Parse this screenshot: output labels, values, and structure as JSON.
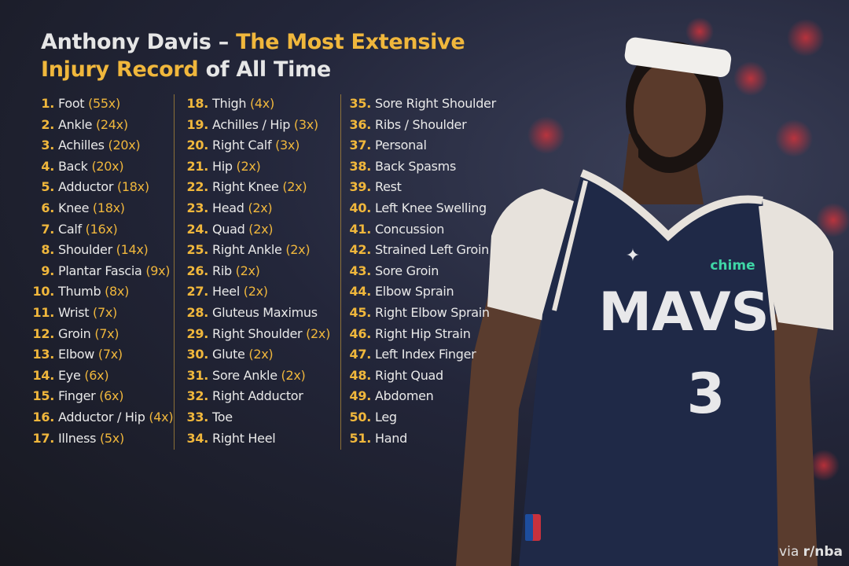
{
  "title": {
    "line1_white": "Anthony Davis – ",
    "line1_gold": "The Most Extensive",
    "line2_gold": "Injury Record",
    "line2_white": " of All Time"
  },
  "columns": [
    [
      {
        "num": "1.",
        "name": "Foot",
        "count": "(55x)"
      },
      {
        "num": "2.",
        "name": "Ankle",
        "count": "(24x)"
      },
      {
        "num": "3.",
        "name": "Achilles",
        "count": "(20x)"
      },
      {
        "num": "4.",
        "name": "Back",
        "count": "(20x)"
      },
      {
        "num": "5.",
        "name": "Adductor",
        "count": "(18x)"
      },
      {
        "num": "6.",
        "name": "Knee",
        "count": "(18x)"
      },
      {
        "num": "7.",
        "name": "Calf",
        "count": "(16x)"
      },
      {
        "num": "8.",
        "name": "Shoulder",
        "count": "(14x)"
      },
      {
        "num": "9.",
        "name": "Plantar Fascia",
        "count": "(9x)"
      },
      {
        "num": "10.",
        "name": "Thumb",
        "count": "(8x)"
      },
      {
        "num": "11.",
        "name": "Wrist",
        "count": "(7x)"
      },
      {
        "num": "12.",
        "name": "Groin",
        "count": "(7x)"
      },
      {
        "num": "13.",
        "name": "Elbow",
        "count": "(7x)"
      },
      {
        "num": "14.",
        "name": "Eye",
        "count": "(6x)"
      },
      {
        "num": "15.",
        "name": "Finger",
        "count": "(6x)"
      },
      {
        "num": "16.",
        "name": "Adductor / Hip",
        "count": "(4x)"
      },
      {
        "num": "17.",
        "name": "Illness",
        "count": "(5x)"
      }
    ],
    [
      {
        "num": "18.",
        "name": "Thigh",
        "count": "(4x)"
      },
      {
        "num": "19.",
        "name": "Achilles / Hip",
        "count": "(3x)"
      },
      {
        "num": "20.",
        "name": "Right Calf",
        "count": "(3x)"
      },
      {
        "num": "21.",
        "name": "Hip",
        "count": "(2x)"
      },
      {
        "num": "22.",
        "name": "Right Knee",
        "count": "(2x)"
      },
      {
        "num": "23.",
        "name": "Head",
        "count": "(2x)"
      },
      {
        "num": "24.",
        "name": "Quad",
        "count": "(2x)"
      },
      {
        "num": "25.",
        "name": "Right Ankle",
        "count": "(2x)"
      },
      {
        "num": "26.",
        "name": "Rib",
        "count": "(2x)"
      },
      {
        "num": "27.",
        "name": "Heel",
        "count": "(2x)"
      },
      {
        "num": "28.",
        "name": "Gluteus Maximus",
        "count": ""
      },
      {
        "num": "29.",
        "name": "Right Shoulder",
        "count": "(2x)"
      },
      {
        "num": "30.",
        "name": "Glute",
        "count": "(2x)"
      },
      {
        "num": "31.",
        "name": "Sore Ankle",
        "count": "(2x)"
      },
      {
        "num": "32.",
        "name": "Right Adductor",
        "count": ""
      },
      {
        "num": "33.",
        "name": "Toe",
        "count": ""
      },
      {
        "num": "34.",
        "name": "Right Heel",
        "count": ""
      }
    ],
    [
      {
        "num": "35.",
        "name": "Sore Right Shoulder",
        "count": ""
      },
      {
        "num": "36.",
        "name": "Ribs / Shoulder",
        "count": ""
      },
      {
        "num": "37.",
        "name": "Personal",
        "count": ""
      },
      {
        "num": "38.",
        "name": "Back Spasms",
        "count": ""
      },
      {
        "num": "39.",
        "name": "Rest",
        "count": ""
      },
      {
        "num": "40.",
        "name": "Left Knee Swelling",
        "count": ""
      },
      {
        "num": "41.",
        "name": "Concussion",
        "count": ""
      },
      {
        "num": "42.",
        "name": "Strained Left Groin",
        "count": ""
      },
      {
        "num": "43.",
        "name": "Sore Groin",
        "count": ""
      },
      {
        "num": "44.",
        "name": "Elbow Sprain",
        "count": ""
      },
      {
        "num": "45.",
        "name": "Right Elbow Sprain",
        "count": ""
      },
      {
        "num": "46.",
        "name": "Right Hip Strain",
        "count": ""
      },
      {
        "num": "47.",
        "name": "Left Index Finger",
        "count": ""
      },
      {
        "num": "48.",
        "name": "Right Quad",
        "count": ""
      },
      {
        "num": "49.",
        "name": "Abdomen",
        "count": ""
      },
      {
        "num": "50.",
        "name": "Leg",
        "count": ""
      },
      {
        "num": "51.",
        "name": "Hand",
        "count": ""
      }
    ]
  ],
  "player_photo": {
    "jersey_text": "MAVS",
    "jersey_number": "3",
    "sponsor": "chime"
  },
  "credit": {
    "prefix": "via ",
    "source": "r/nba"
  },
  "colors": {
    "gold": "#f0b73c",
    "text": "#e9e9e9",
    "jersey": "#1f2947",
    "background": "#1c1e2b"
  }
}
